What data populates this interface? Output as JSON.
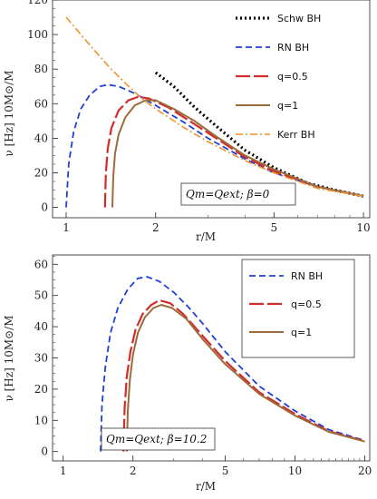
{
  "chart_data": [
    {
      "type": "line",
      "xscale": "log",
      "xlim": [
        0.9,
        10.5
      ],
      "ylim": [
        -6,
        120
      ],
      "xticks": [
        1,
        2,
        5,
        10
      ],
      "xtick_labels": [
        "1",
        "2",
        "5",
        "10"
      ],
      "yticks": [
        0,
        20,
        40,
        60,
        80,
        100,
        120
      ],
      "ytick_labels": [
        "0",
        "20",
        "40",
        "60",
        "80",
        "100",
        "120"
      ],
      "xlabel": "r/M",
      "ylabel": "ν [Hz] 10M⊙/M",
      "annotation": "Qm=Qext; β=0",
      "legend_position": "top-right",
      "series": [
        {
          "name": "Schw BH",
          "color": "#000000",
          "dash": "dotted",
          "x": [
            2.0,
            2.3,
            2.7,
            3.2,
            4.0,
            5.0,
            6.5,
            8.0,
            10.0
          ],
          "y": [
            78,
            70,
            58,
            47,
            33,
            23,
            14,
            10,
            6.5
          ]
        },
        {
          "name": "RN BH",
          "color": "#1f3fd6",
          "dash": "dashed",
          "x": [
            1.0,
            1.02,
            1.06,
            1.12,
            1.2,
            1.3,
            1.38,
            1.5,
            1.7,
            2.0,
            2.5,
            3.0,
            4.0,
            5.0,
            7.0,
            10.0
          ],
          "y": [
            0,
            25,
            44,
            57,
            65,
            70,
            71,
            70,
            66,
            59,
            49,
            40,
            28,
            20,
            12,
            6.5
          ]
        },
        {
          "name": "q=0.5",
          "color": "#d42a2a",
          "dash": "longdash",
          "x": [
            1.35,
            1.36,
            1.38,
            1.42,
            1.5,
            1.62,
            1.75,
            1.9,
            2.2,
            2.6,
            3.2,
            4.0,
            5.0,
            7.0,
            10.0
          ],
          "y": [
            0,
            20,
            34,
            46,
            56,
            62,
            64,
            63,
            58,
            50,
            40,
            29,
            21,
            12,
            6.5
          ]
        },
        {
          "name": "q=1",
          "color": "#9b6b3a",
          "dash": "solid",
          "x": [
            1.43,
            1.44,
            1.46,
            1.5,
            1.58,
            1.7,
            1.85,
            2.0,
            2.3,
            2.7,
            3.2,
            4.0,
            5.0,
            7.0,
            10.0
          ],
          "y": [
            0,
            18,
            31,
            42,
            52,
            59,
            62,
            62,
            57,
            50,
            41,
            30,
            22,
            12,
            6.5
          ]
        },
        {
          "name": "Kerr BH",
          "color": "#f0922b",
          "dash": "dashdot",
          "x": [
            1.0,
            1.2,
            1.4,
            1.6,
            1.8,
            2.0,
            2.5,
            3.0,
            4.0,
            5.0,
            7.0,
            10.0
          ],
          "y": [
            110,
            94,
            81,
            71,
            63,
            57,
            46,
            38,
            27,
            20,
            11,
            6.5
          ]
        }
      ]
    },
    {
      "type": "line",
      "xscale": "log",
      "xlim": [
        0.9,
        21
      ],
      "ylim": [
        -3,
        63
      ],
      "xticks": [
        1,
        2,
        5,
        10,
        20
      ],
      "xtick_labels": [
        "1",
        "2",
        "5",
        "10",
        "20"
      ],
      "yticks": [
        0,
        10,
        20,
        30,
        40,
        50,
        60
      ],
      "ytick_labels": [
        "0",
        "10",
        "20",
        "30",
        "40",
        "50",
        "60"
      ],
      "xlabel": "r/M",
      "ylabel": "ν [Hz] 10M⊙/M",
      "annotation": "Qm=Qext; β=10.2",
      "legend_position": "top-right",
      "series": [
        {
          "name": "RN BH",
          "color": "#1f3fd6",
          "dash": "dashed",
          "x": [
            1.45,
            1.47,
            1.52,
            1.6,
            1.72,
            1.9,
            2.1,
            2.3,
            2.6,
            3.0,
            3.5,
            4.0,
            5.0,
            7.0,
            10.0,
            14.0,
            20.0
          ],
          "y": [
            0,
            15,
            27,
            38,
            46,
            52,
            55.5,
            56,
            54.5,
            51,
            46,
            41,
            32,
            21,
            13,
            7,
            3.5
          ]
        },
        {
          "name": "q=0.5",
          "color": "#d42a2a",
          "dash": "longdash",
          "x": [
            1.82,
            1.84,
            1.88,
            1.95,
            2.05,
            2.2,
            2.4,
            2.6,
            2.9,
            3.3,
            4.0,
            5.0,
            7.0,
            10.0,
            14.0,
            20.0
          ],
          "y": [
            0,
            14,
            24,
            32,
            39,
            44,
            47,
            48.5,
            47.5,
            44,
            37,
            29,
            19,
            12,
            6.5,
            3.3
          ]
        },
        {
          "name": "q=1",
          "color": "#9b6b3a",
          "dash": "solid",
          "x": [
            1.88,
            1.9,
            1.94,
            2.0,
            2.1,
            2.25,
            2.45,
            2.65,
            2.95,
            3.4,
            4.0,
            5.0,
            7.0,
            10.0,
            14.0,
            20.0
          ],
          "y": [
            0,
            13,
            23,
            31,
            38,
            43,
            46,
            47,
            46,
            42.5,
            36,
            28,
            18.5,
            11.5,
            6.3,
            3.2
          ]
        }
      ]
    }
  ]
}
